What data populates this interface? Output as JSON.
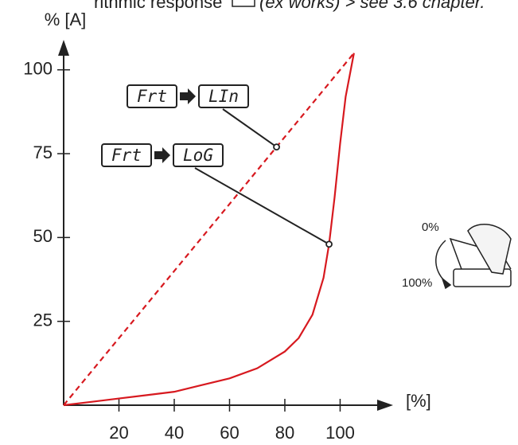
{
  "header_text": [
    "rithmic response",
    "(ex works) > see 3.6 chapter."
  ],
  "chart_data": {
    "type": "line",
    "y_label": "% [A]",
    "x_label": "[%]",
    "xlim": [
      0,
      118
    ],
    "ylim": [
      0,
      108
    ],
    "xticks": [
      20,
      40,
      60,
      80,
      100
    ],
    "yticks": [
      25,
      50,
      75,
      100
    ],
    "series": [
      {
        "name": "LIn",
        "color": "#d7191f",
        "dashed": true,
        "x": [
          0,
          105
        ],
        "values": [
          0,
          105
        ]
      },
      {
        "name": "LoG",
        "color": "#d7191f",
        "dashed": false,
        "x": [
          0,
          10,
          20,
          30,
          40,
          50,
          60,
          70,
          80,
          85,
          90,
          94,
          96,
          98,
          100,
          102,
          105
        ],
        "values": [
          0,
          1,
          2,
          3,
          4,
          6,
          8,
          11,
          16,
          20,
          27,
          38,
          48,
          62,
          78,
          92,
          105
        ]
      }
    ],
    "annotations": [
      {
        "parts": [
          "Frt",
          "LIn"
        ],
        "x": 77,
        "y": 77
      },
      {
        "parts": [
          "Frt",
          "LoG"
        ],
        "x": 96,
        "y": 48
      }
    ],
    "pedal_labels": [
      "0%",
      "100%"
    ]
  }
}
